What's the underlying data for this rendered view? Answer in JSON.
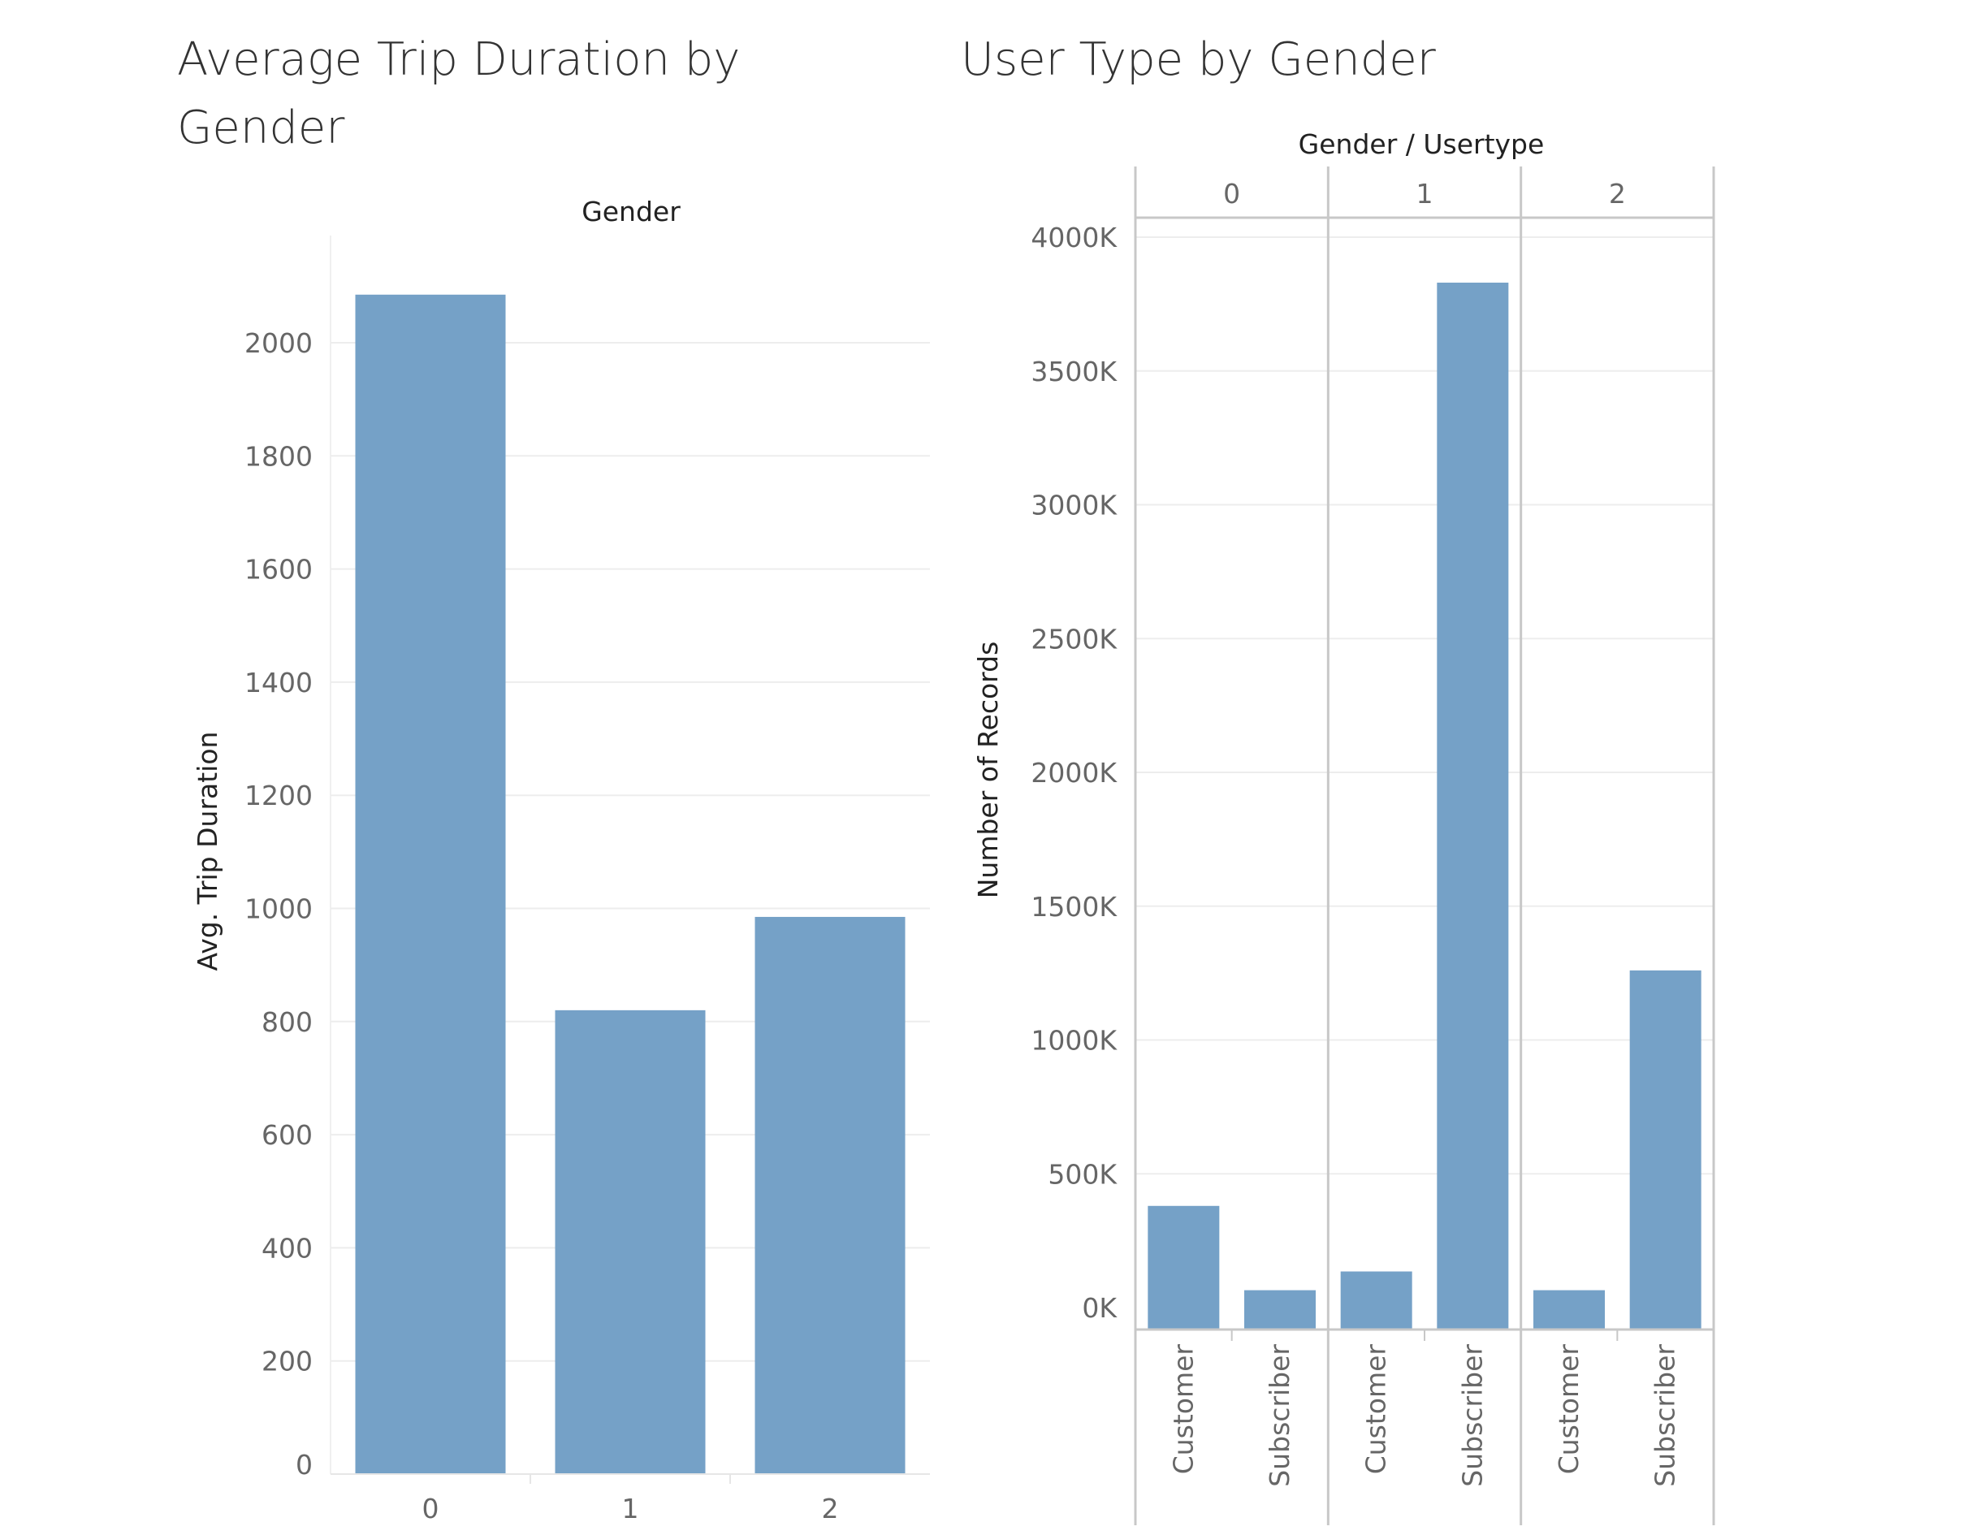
{
  "chart_data": [
    {
      "type": "bar",
      "title": "Average Trip Duration by Gender",
      "header": "Gender",
      "xlabel": "",
      "ylabel": "Avg. Trip Duration",
      "categories": [
        "0",
        "1",
        "2"
      ],
      "values": [
        2085,
        820,
        985
      ],
      "ylim": [
        0,
        2000
      ],
      "yticks": [
        0,
        200,
        400,
        600,
        800,
        1000,
        1200,
        1400,
        1600,
        1800,
        2000
      ],
      "grid": true,
      "color": "#75a1c7"
    },
    {
      "type": "bar",
      "title": "User Type by Gender",
      "header": "Gender / Usertype",
      "ylabel": "Number of Records",
      "groups": [
        {
          "label": "0",
          "categories": [
            "Customer",
            "Subscriber"
          ],
          "values": [
            380000,
            65000
          ]
        },
        {
          "label": "1",
          "categories": [
            "Customer",
            "Subscriber"
          ],
          "values": [
            135000,
            3830000
          ]
        },
        {
          "label": "2",
          "categories": [
            "Customer",
            "Subscriber"
          ],
          "values": [
            65000,
            1260000
          ]
        }
      ],
      "ylim": [
        0,
        4000000
      ],
      "yticks": [
        0,
        500000,
        1000000,
        1500000,
        2000000,
        2500000,
        3000000,
        3500000,
        4000000
      ],
      "ytick_labels": [
        "0K",
        "500K",
        "1000K",
        "1500K",
        "2000K",
        "2500K",
        "3000K",
        "3500K",
        "4000K"
      ],
      "grid": true,
      "color": "#75a1c7"
    }
  ]
}
